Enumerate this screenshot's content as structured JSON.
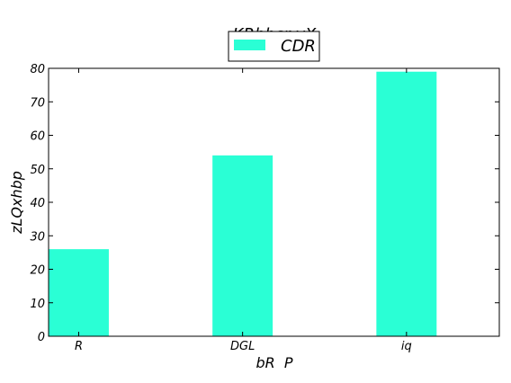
{
  "chart_data": {
    "type": "bar",
    "title": "KRbbsr yX",
    "xlabel": "bR  P",
    "ylabel": "zLQxhbp",
    "categories": [
      "R",
      "DGL",
      "iq"
    ],
    "series": [
      {
        "name": "CDR",
        "values": [
          26,
          54,
          79
        ],
        "color": "#2affd5"
      }
    ],
    "ylim": [
      0,
      80
    ],
    "yticks": [
      0,
      10,
      20,
      30,
      40,
      50,
      60,
      70,
      80
    ],
    "grid": false,
    "legend_position": "top-center"
  }
}
